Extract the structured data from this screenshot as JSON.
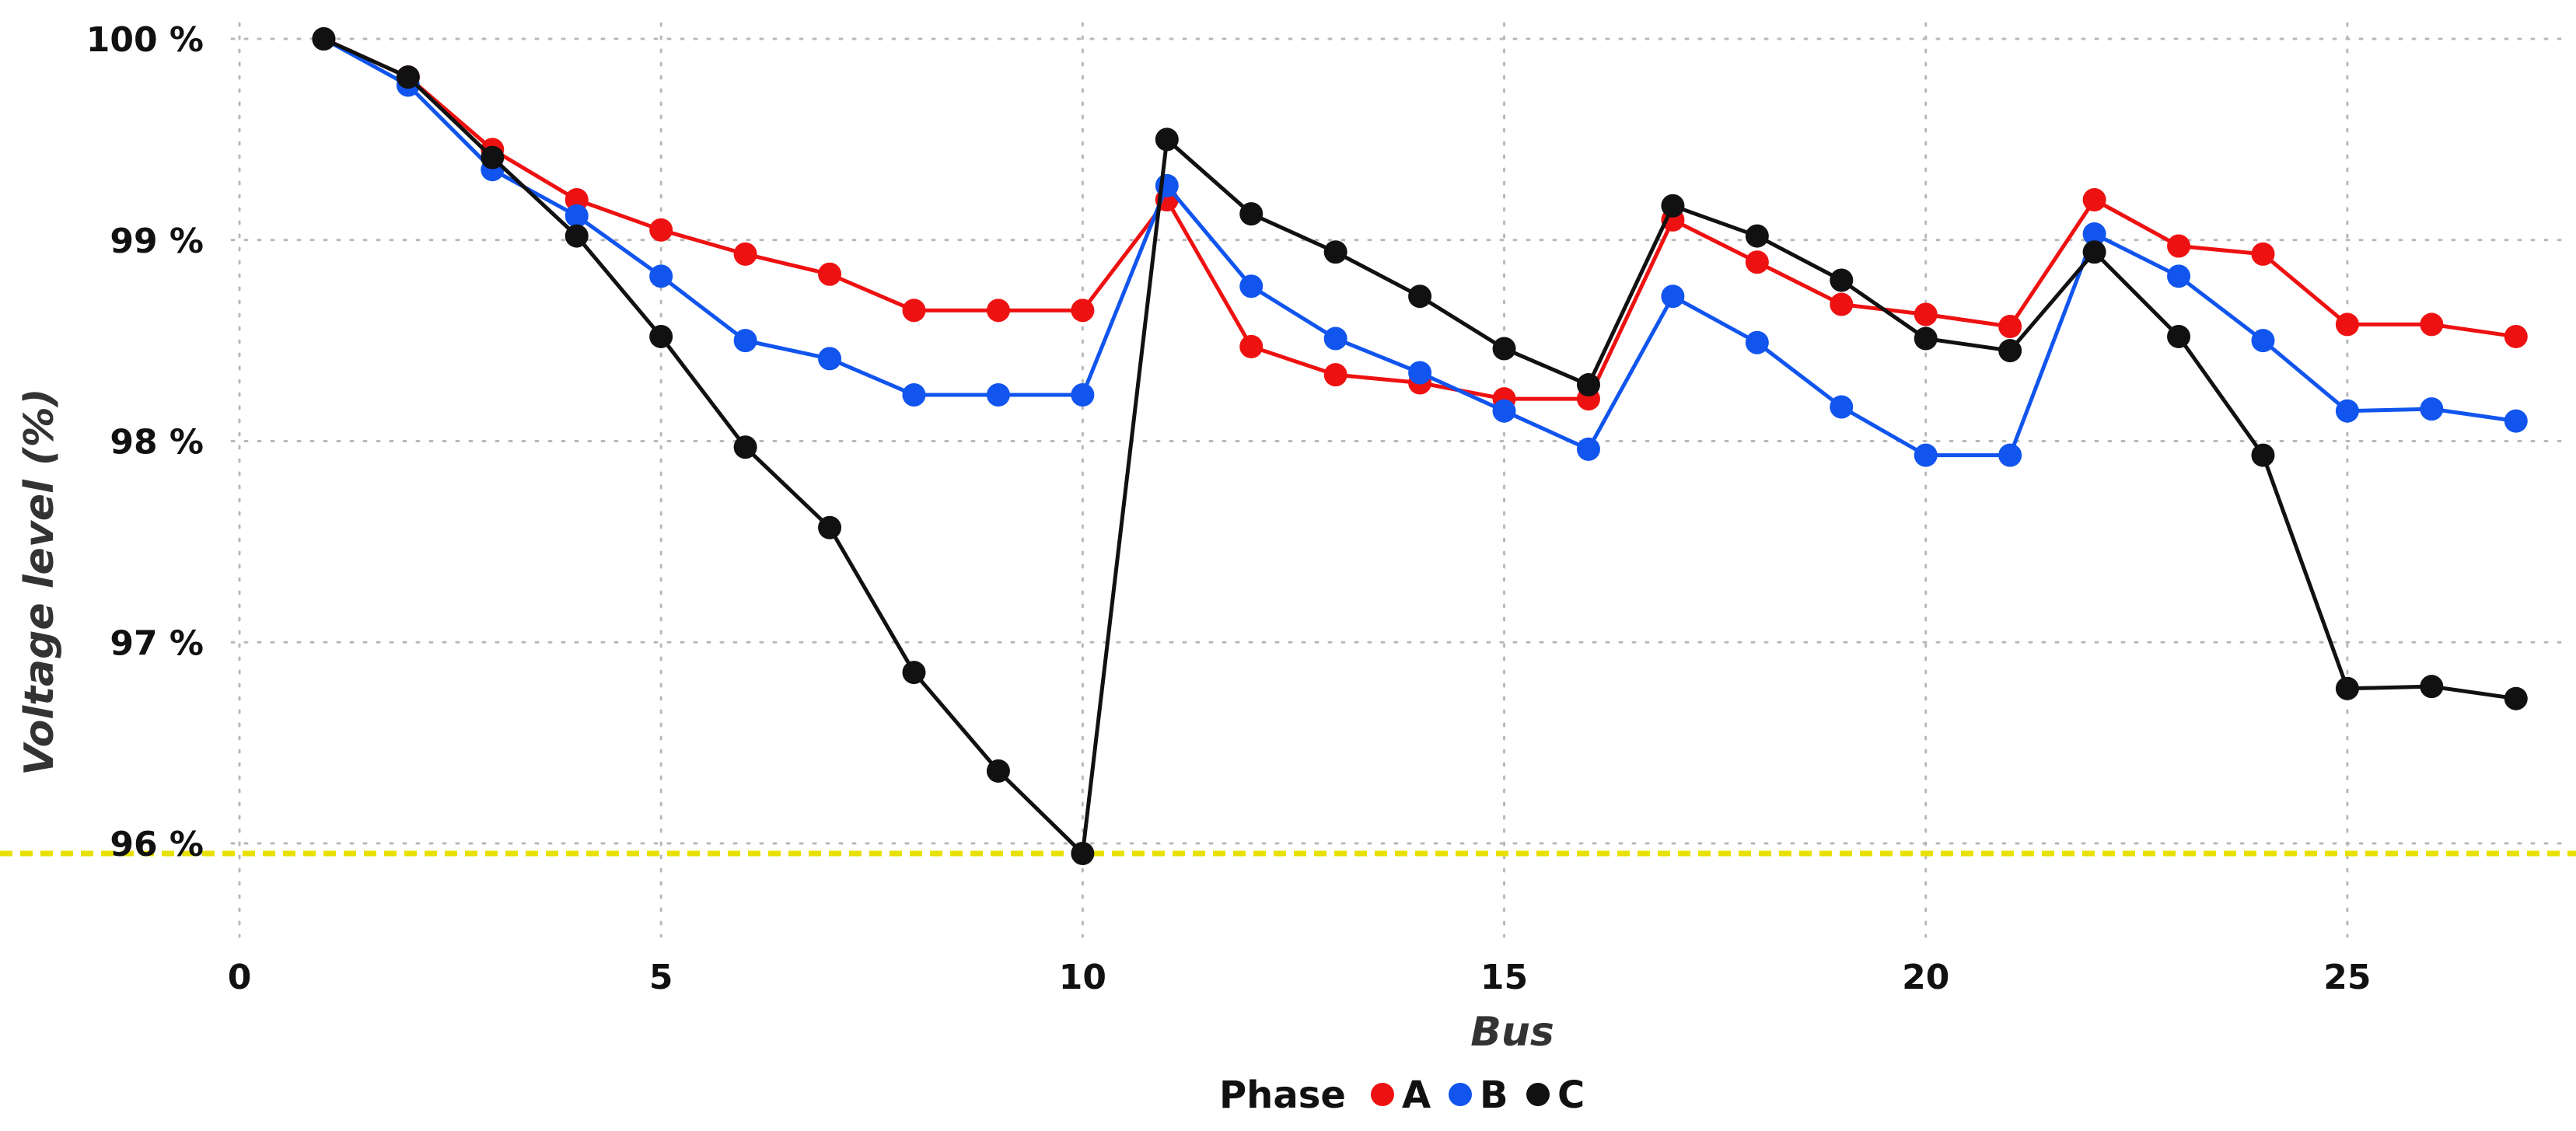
{
  "chart_data": {
    "type": "line",
    "title": "",
    "xlabel": "Bus",
    "ylabel": "Voltage level (%)",
    "xlim": [
      0,
      27.5
    ],
    "ylim": [
      95.5,
      100.1
    ],
    "x_ticks": [
      0,
      5,
      10,
      15,
      20,
      25
    ],
    "x_tick_labels": [
      "0",
      "5",
      "10",
      "15",
      "20",
      "25"
    ],
    "y_ticks": [
      96,
      97,
      98,
      99,
      100
    ],
    "y_tick_labels": [
      "96 %",
      "97 %",
      "98 %",
      "99 %",
      "100 %"
    ],
    "grid": true,
    "reference_line": {
      "y": 95.95,
      "color": "#e8e000",
      "style": "dashed"
    },
    "legend": {
      "title": "Phase",
      "placement": "bottom-center"
    },
    "x": [
      1,
      2,
      3,
      4,
      5,
      6,
      7,
      8,
      9,
      10,
      11,
      12,
      13,
      14,
      15,
      16,
      17,
      18,
      19,
      20,
      21,
      22,
      23,
      24,
      25,
      26,
      27
    ],
    "series": [
      {
        "name": "A",
        "color": "#ee1111",
        "values": [
          100.0,
          99.81,
          99.45,
          99.2,
          99.05,
          98.93,
          98.83,
          98.65,
          98.65,
          98.65,
          99.2,
          98.47,
          98.33,
          98.29,
          98.21,
          98.21,
          99.1,
          98.89,
          98.68,
          98.63,
          98.57,
          99.2,
          98.97,
          98.93,
          98.58,
          98.58,
          98.52
        ]
      },
      {
        "name": "B",
        "color": "#1155ee",
        "values": [
          100.0,
          99.77,
          99.35,
          99.12,
          98.82,
          98.5,
          98.41,
          98.23,
          98.23,
          98.23,
          99.27,
          98.77,
          98.51,
          98.34,
          98.15,
          97.96,
          98.72,
          98.49,
          98.17,
          97.93,
          97.93,
          99.03,
          98.82,
          98.5,
          98.15,
          98.16,
          98.1
        ]
      },
      {
        "name": "C",
        "color": "#111111",
        "values": [
          100.0,
          99.81,
          99.41,
          99.02,
          98.52,
          97.97,
          97.57,
          96.85,
          96.36,
          95.95,
          99.5,
          99.13,
          98.94,
          98.72,
          98.46,
          98.28,
          99.17,
          99.02,
          98.8,
          98.51,
          98.45,
          98.94,
          98.52,
          97.93,
          96.77,
          96.78,
          96.72
        ]
      }
    ]
  }
}
